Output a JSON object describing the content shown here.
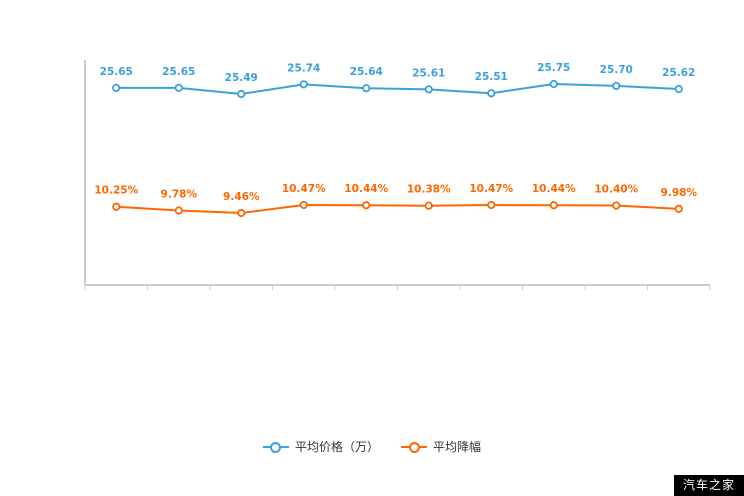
{
  "chart_data": {
    "type": "line",
    "point_count": 10,
    "grid": false,
    "legend_position": "bottom",
    "x_tick_labels": [],
    "series": [
      {
        "name": "平均价格（万）",
        "color": "#3aa1dc",
        "values": [
          25.65,
          25.65,
          25.49,
          25.74,
          25.64,
          25.61,
          25.51,
          25.75,
          25.7,
          25.62
        ],
        "labels": [
          "25.65",
          "25.65",
          "25.49",
          "25.74",
          "25.64",
          "25.61",
          "25.51",
          "25.75",
          "25.70",
          "25.62"
        ]
      },
      {
        "name": "平均降幅",
        "color": "#ff6600",
        "values": [
          10.25,
          9.78,
          9.46,
          10.47,
          10.44,
          10.38,
          10.47,
          10.44,
          10.4,
          9.98
        ],
        "labels": [
          "10.25%",
          "9.78%",
          "9.46%",
          "10.47%",
          "10.44%",
          "10.38%",
          "10.47%",
          "10.44%",
          "10.40%",
          "9.98%"
        ]
      }
    ]
  },
  "watermark": {
    "text": "汽车之家"
  }
}
